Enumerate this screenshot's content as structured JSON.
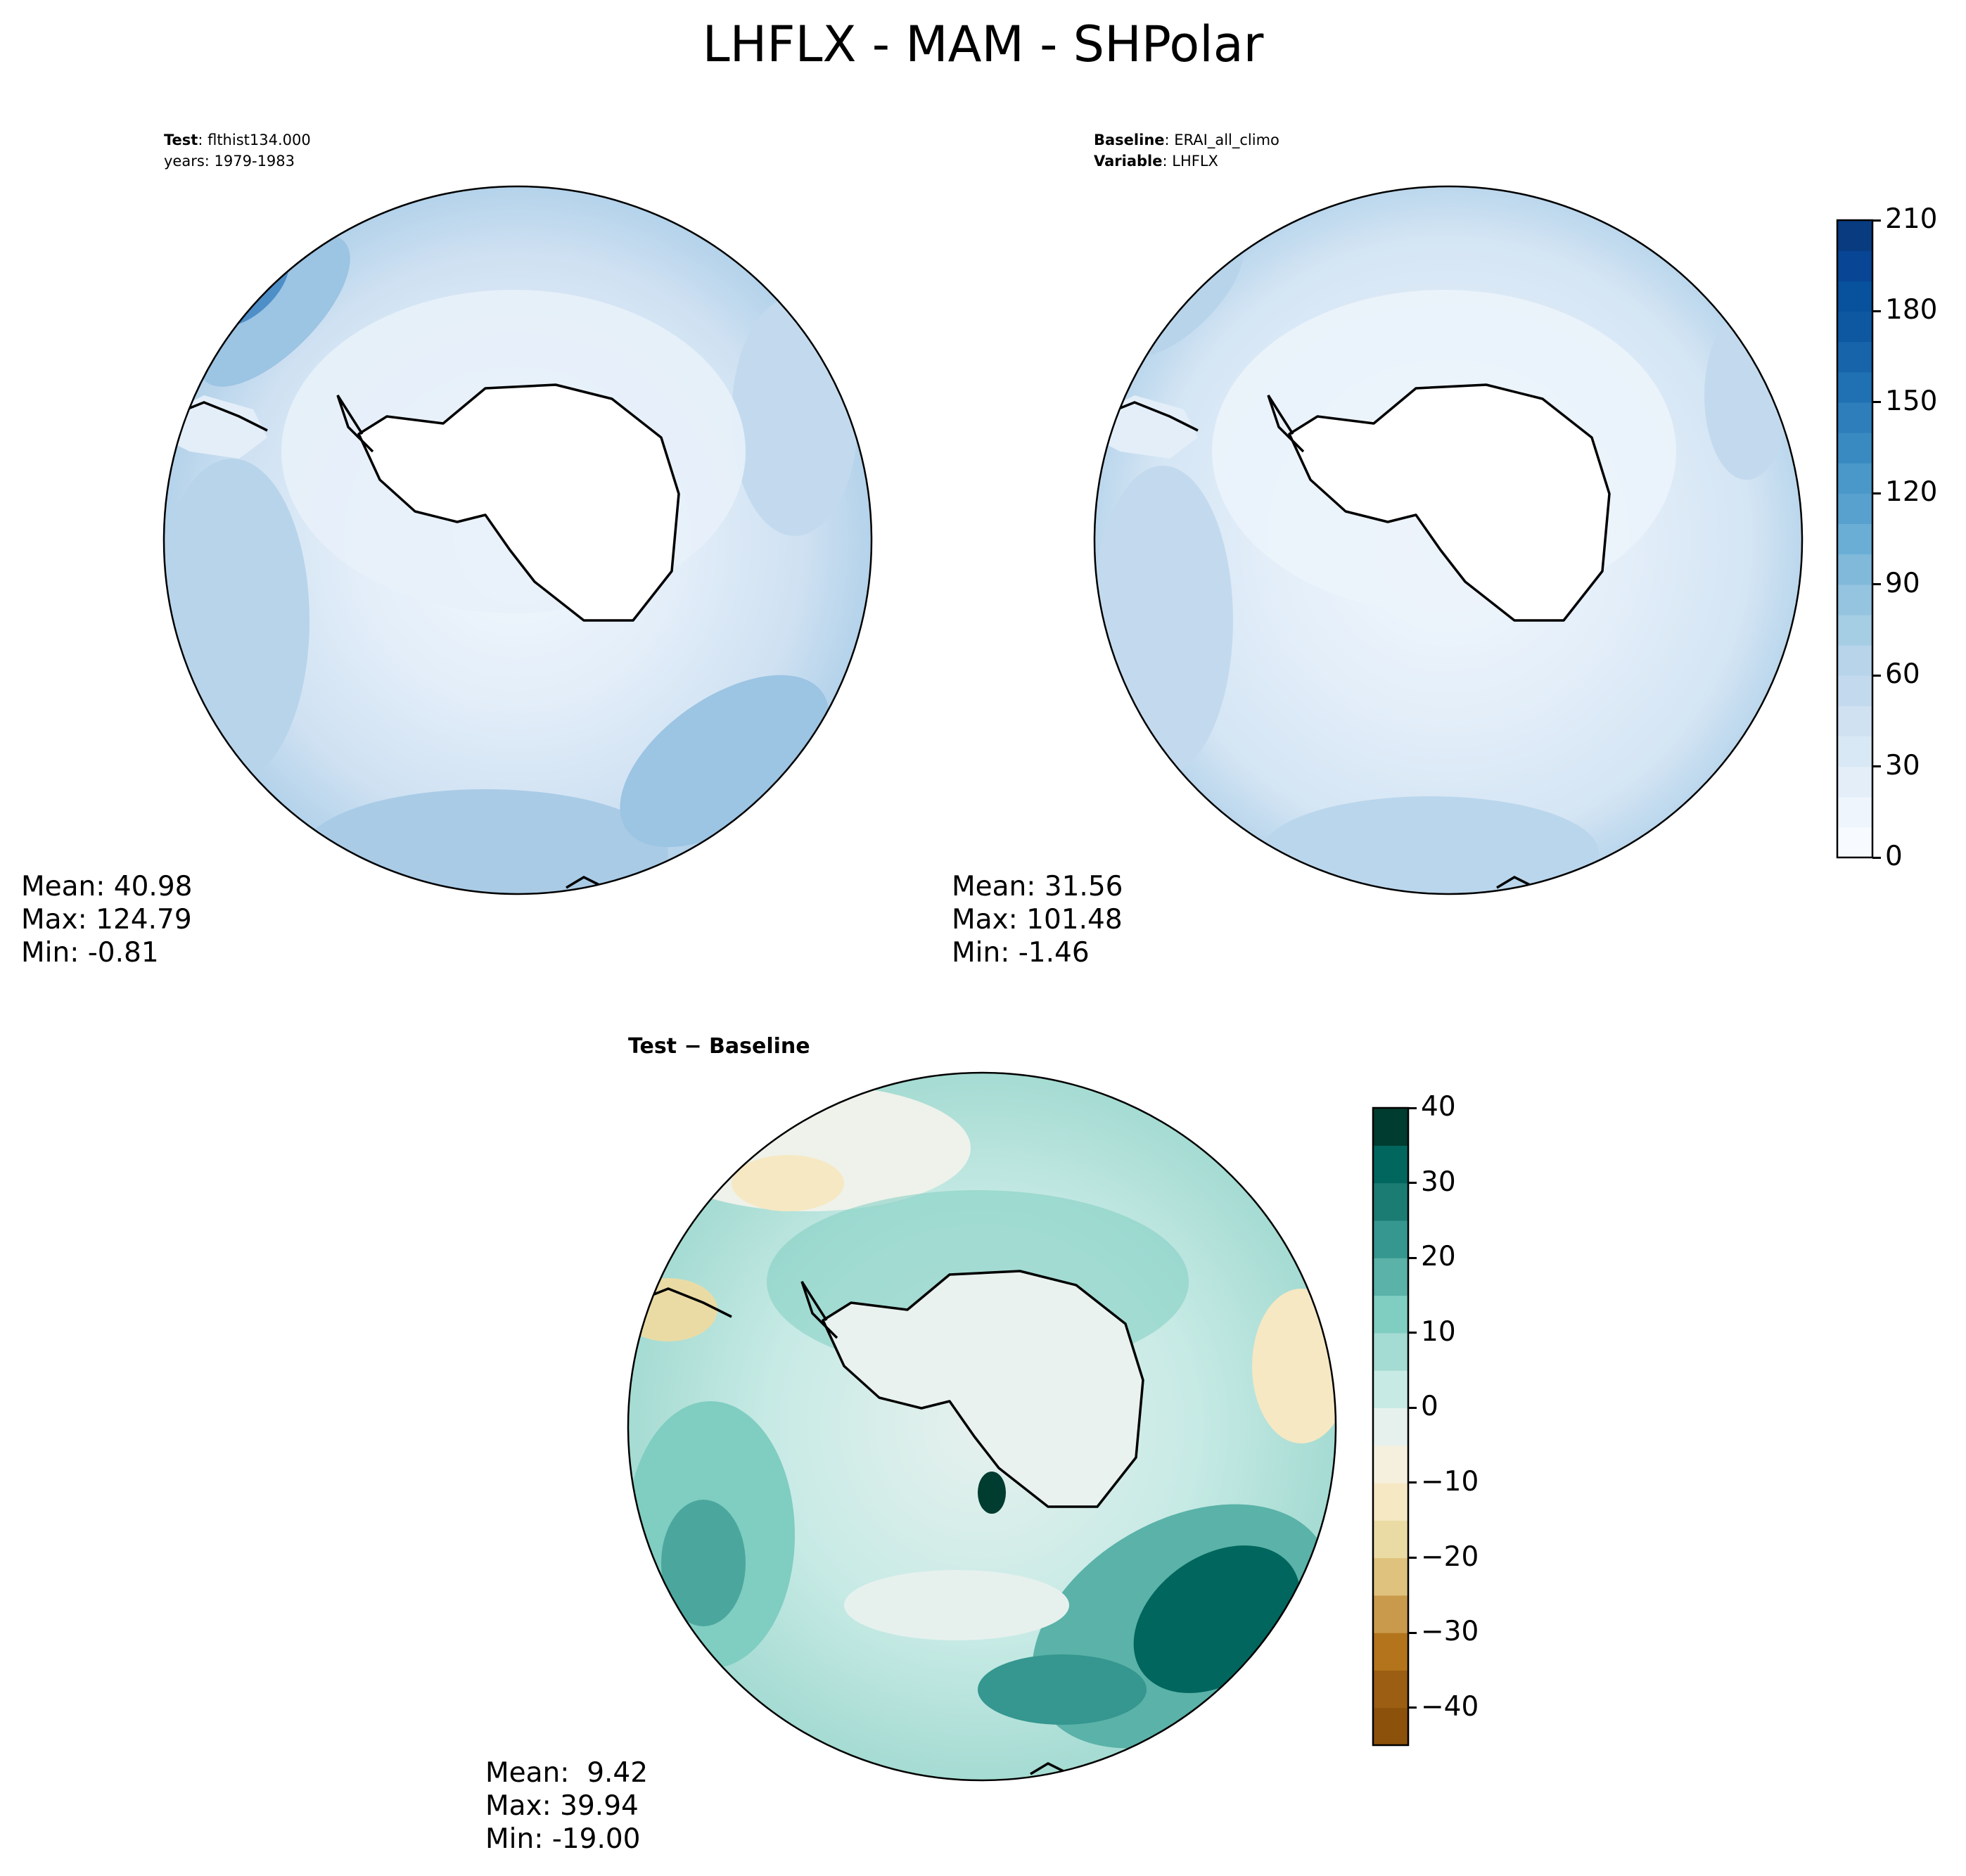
{
  "figure": {
    "title": "LHFLX - MAM - SHPolar"
  },
  "panels": {
    "test": {
      "label_key": "Test",
      "label_value": "flthist134.000",
      "years": "years: 1979-1983",
      "mean": "Mean: 40.98",
      "max": "Max: 124.79",
      "min": "Min: -0.81"
    },
    "baseline": {
      "label_key": "Baseline",
      "label_value": "ERAI_all_climo",
      "variable_key": "Variable",
      "variable_value": "LHFLX",
      "mean": "Mean: 31.56",
      "max": "Max: 101.48",
      "min": "Min: -1.46"
    },
    "diff": {
      "title": "Test − Baseline",
      "mean": "Mean:  9.42",
      "max": "Max: 39.94",
      "min": "Min: -19.00"
    }
  },
  "colorbars": {
    "main": {
      "cmap": "Blues",
      "range": [
        0,
        210
      ],
      "ticks": [
        "0",
        "30",
        "60",
        "90",
        "120",
        "150",
        "180",
        "210"
      ],
      "colors": [
        "#f7fbff",
        "#eef5fc",
        "#e3eef9",
        "#d9e8f5",
        "#d0e1f2",
        "#c3daee",
        "#b7d4ea",
        "#a5cde3",
        "#94c4df",
        "#80b9da",
        "#6aaed6",
        "#58a1cf",
        "#4a98c9",
        "#3a8ac2",
        "#2e7ebc",
        "#2070b4",
        "#1764ab",
        "#0e58a2",
        "#08519c",
        "#084594",
        "#083b80"
      ]
    },
    "diff": {
      "cmap": "BrBG",
      "range": [
        -45,
        40
      ],
      "ticks": [
        "40",
        "30",
        "20",
        "10",
        "0",
        "−10",
        "−20",
        "−30",
        "−40"
      ],
      "colors": [
        "#8c510a",
        "#9b5e12",
        "#b3741c",
        "#c99a4b",
        "#dfc27d",
        "#eadba5",
        "#f6e8c3",
        "#f5f0de",
        "#e6f1ee",
        "#c7eae5",
        "#a4dbd2",
        "#80cdc1",
        "#5ab2a8",
        "#35978f",
        "#1b7c74",
        "#01665e",
        "#003c30"
      ]
    }
  }
}
